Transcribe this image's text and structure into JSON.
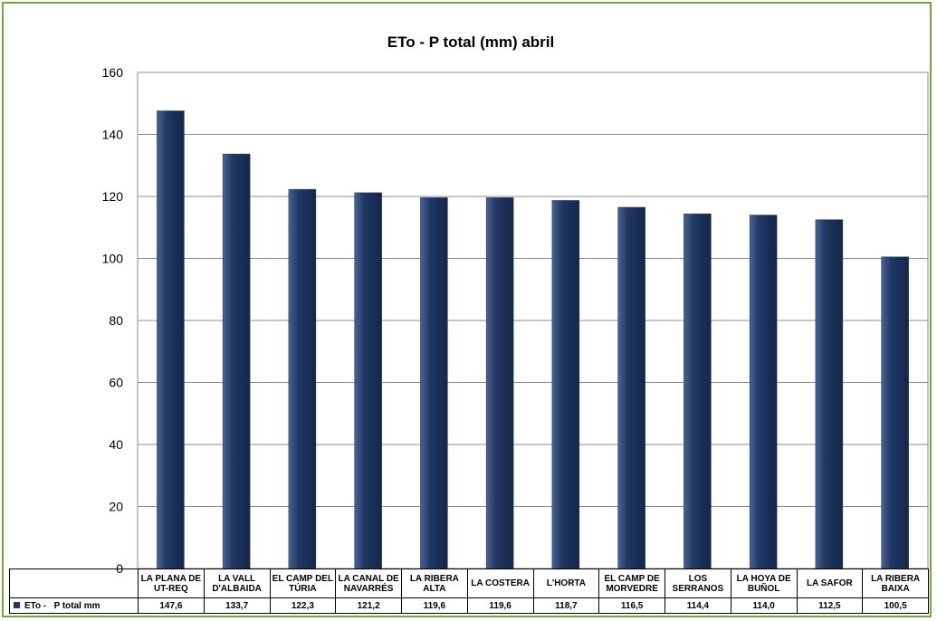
{
  "chart_data": {
    "type": "bar",
    "title": "ETo - P total (mm) abril",
    "categories": [
      "LA PLANA DE UT-REQ",
      "LA VALL D'ALBAIDA",
      "EL CAMP DEL TÚRIA",
      "LA CANAL DE NAVARRÉS",
      "LA RIBERA ALTA",
      "LA COSTERA",
      "L'HORTA",
      "EL CAMP DE MORVEDRE",
      "LOS SERRANOS",
      "LA HOYA DE BUÑOL",
      "LA SAFOR",
      "LA RIBERA BAIXA"
    ],
    "series": [
      {
        "name": "ETo -   P total mm",
        "color": "#1f3864",
        "values": [
          147.6,
          133.7,
          122.3,
          121.2,
          119.6,
          119.6,
          118.7,
          116.5,
          114.4,
          114.0,
          112.5,
          100.5
        ],
        "value_labels": [
          "147,6",
          "133,7",
          "122,3",
          "121,2",
          "119,6",
          "119,6",
          "118,7",
          "116,5",
          "114,4",
          "114,0",
          "112,5",
          "100,5"
        ]
      }
    ],
    "ylim": [
      0,
      160
    ],
    "yticks": [
      0,
      20,
      40,
      60,
      80,
      100,
      120,
      140,
      160
    ],
    "grid": true
  }
}
